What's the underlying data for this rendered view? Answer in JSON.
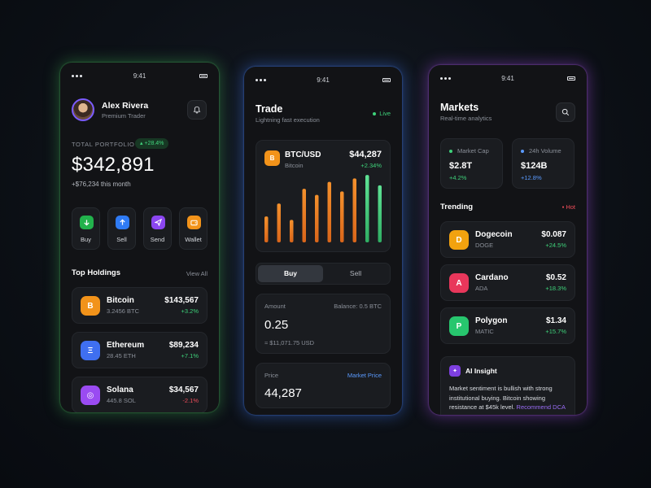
{
  "status_bar": {
    "time": "9:41"
  },
  "portfolio": {
    "user": {
      "name": "Alex Rivera",
      "role": "Premium Trader"
    },
    "total_label": "TOTAL PORTFOLIO",
    "badge": "+28.4%",
    "total_value": "$342,891",
    "gain_text": "+$76,234 this month",
    "actions": [
      {
        "label": "Buy",
        "icon": "arrow-down-icon",
        "color": "#22b24c"
      },
      {
        "label": "Sell",
        "icon": "arrow-up-icon",
        "color": "#2f7bf5"
      },
      {
        "label": "Send",
        "icon": "send-icon",
        "color": "#8b46f0"
      },
      {
        "label": "Wallet",
        "icon": "wallet-icon",
        "color": "#f2931a"
      }
    ],
    "holdings_title": "Top Holdings",
    "view_all": "View All",
    "holdings": [
      {
        "name": "Bitcoin",
        "amount": "3.2456 BTC",
        "value": "$143,567",
        "change": "+3.2%",
        "symbol": "B",
        "color": "#f2931a"
      },
      {
        "name": "Ethereum",
        "amount": "28.45 ETH",
        "value": "$89,234",
        "change": "+7.1%",
        "symbol": "Ξ",
        "color": "#3f6ff0"
      },
      {
        "name": "Solana",
        "amount": "445.8 SOL",
        "value": "$34,567",
        "change": "-2.1%",
        "symbol": "◎",
        "color": "#9a4bf2"
      }
    ]
  },
  "trade": {
    "title": "Trade",
    "subtitle": "Lightning fast execution",
    "live": "Live",
    "pair": "BTC/USD",
    "pair_name": "Bitcoin",
    "price": "$44,287",
    "price_change": "+2.34%",
    "chart_data": {
      "type": "bar",
      "values": [
        30,
        45,
        26,
        62,
        55,
        70,
        59,
        74,
        78,
        66
      ],
      "colors": [
        "#f07d24",
        "#f07d24",
        "#f07d24",
        "#f07d24",
        "#f07d24",
        "#f07d24",
        "#f07d24",
        "#f07d24",
        "#3ed27a",
        "#3ed27a"
      ],
      "ylim": [
        0,
        80
      ]
    },
    "tabs": {
      "buy": "Buy",
      "sell": "Sell"
    },
    "amount": {
      "label": "Amount",
      "balance": "Balance: 0.5 BTC",
      "value": "0.25",
      "approx": "≈ $11,071.75 USD"
    },
    "price_field": {
      "label": "Price",
      "mode": "Market Price",
      "value": "44,287"
    }
  },
  "markets": {
    "title": "Markets",
    "subtitle": "Real-time analytics",
    "stats": [
      {
        "label": "Market Cap",
        "value": "$2.8T",
        "change": "+4.2%",
        "dot": "#3ed27a"
      },
      {
        "label": "24h Volume",
        "value": "$124B",
        "change": "+12.8%",
        "dot": "#5b9bff"
      }
    ],
    "trending_title": "Trending",
    "hot": "Hot",
    "trending": [
      {
        "name": "Dogecoin",
        "ticker": "DOGE",
        "price": "$0.087",
        "change": "+24.5%",
        "symbol": "D",
        "color": "#f2a20f"
      },
      {
        "name": "Cardano",
        "ticker": "ADA",
        "price": "$0.52",
        "change": "+18.3%",
        "symbol": "A",
        "color": "#e8375b"
      },
      {
        "name": "Polygon",
        "ticker": "MATIC",
        "price": "$1.34",
        "change": "+15.7%",
        "symbol": "P",
        "color": "#27c66e"
      }
    ],
    "insight": {
      "title": "AI Insight",
      "body": "Market sentiment is bullish with strong institutional buying. Bitcoin showing resistance at $45k level. ",
      "link": "Recommend DCA strategy."
    }
  }
}
